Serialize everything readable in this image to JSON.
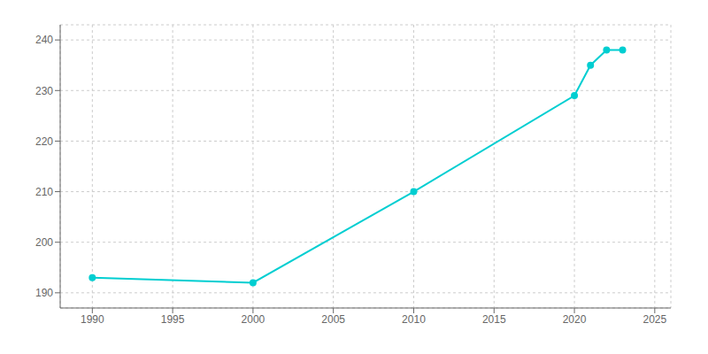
{
  "chart_data": {
    "type": "line",
    "x": [
      1990,
      2000,
      2010,
      2020,
      2021,
      2022,
      2023
    ],
    "values": [
      193,
      192,
      210,
      229,
      235,
      238,
      238
    ],
    "color": "#00CED1",
    "marker": "circle",
    "xlim": [
      1988,
      2026
    ],
    "ylim": [
      187,
      243
    ],
    "xticks": [
      1990,
      1995,
      2000,
      2005,
      2010,
      2015,
      2020,
      2025
    ],
    "yticks": [
      190,
      200,
      210,
      220,
      230,
      240
    ],
    "grid": true
  }
}
